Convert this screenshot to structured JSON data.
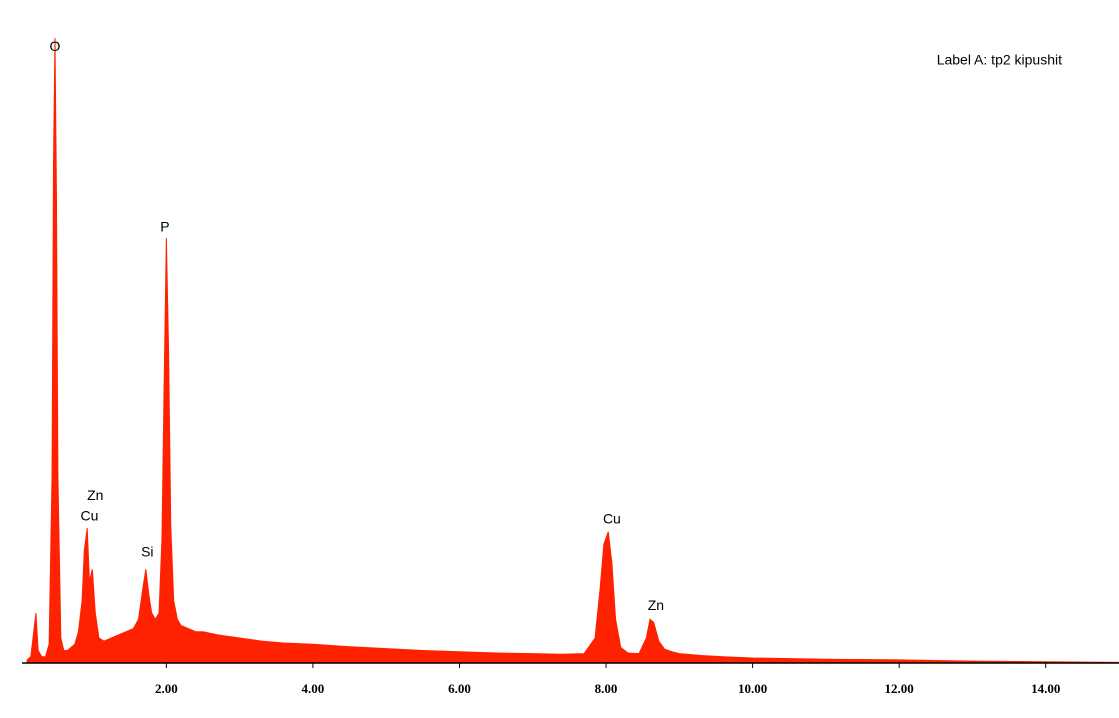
{
  "chart_data": {
    "type": "area",
    "label": "Label A: tp2 kipushit",
    "x": [
      0.1,
      0.15,
      0.2,
      0.22,
      0.25,
      0.3,
      0.35,
      0.4,
      0.44,
      0.46,
      0.48,
      0.5,
      0.52,
      0.56,
      0.6,
      0.65,
      0.7,
      0.75,
      0.8,
      0.85,
      0.88,
      0.92,
      0.95,
      0.99,
      1.03,
      1.08,
      1.15,
      1.25,
      1.35,
      1.45,
      1.55,
      1.62,
      1.68,
      1.72,
      1.76,
      1.8,
      1.85,
      1.9,
      1.94,
      1.97,
      2.0,
      2.03,
      2.06,
      2.1,
      2.15,
      2.2,
      2.3,
      2.4,
      2.5,
      2.7,
      3.0,
      3.3,
      3.6,
      4.0,
      4.5,
      5.0,
      5.5,
      6.0,
      6.5,
      7.0,
      7.4,
      7.7,
      7.85,
      7.92,
      7.97,
      8.03,
      8.08,
      8.13,
      8.2,
      8.3,
      8.45,
      8.55,
      8.6,
      8.65,
      8.72,
      8.8,
      8.9,
      9.0,
      9.3,
      9.6,
      10,
      11,
      12,
      13,
      14,
      15
    ],
    "values": [
      0.5,
      1,
      6,
      8,
      2,
      1,
      1,
      3,
      30,
      80,
      100,
      75,
      30,
      4,
      2,
      2,
      2.5,
      3,
      5,
      10,
      18,
      21.6,
      13,
      15,
      8,
      4,
      3.5,
      4,
      4.5,
      5,
      5.5,
      7,
      12,
      15,
      11,
      8,
      7,
      8,
      20,
      45,
      68,
      50,
      22,
      10,
      7,
      6,
      5.5,
      5,
      5,
      4.5,
      4,
      3.5,
      3.2,
      3,
      2.6,
      2.3,
      2,
      1.8,
      1.6,
      1.5,
      1.4,
      1.5,
      4,
      12,
      19,
      21,
      16,
      7,
      2.5,
      1.6,
      1.5,
      4,
      7,
      6.5,
      3.5,
      2.2,
      1.8,
      1.5,
      1.2,
      1,
      0.8,
      0.6,
      0.5,
      0.3,
      0.2,
      0.1
    ],
    "color": "#ff2200",
    "xlim": [
      0.03,
      15.0
    ],
    "ylim": [
      0,
      100
    ],
    "xticks": [
      {
        "value": 2,
        "label": "2.00"
      },
      {
        "value": 4,
        "label": "4.00"
      },
      {
        "value": 6,
        "label": "6.00"
      },
      {
        "value": 8,
        "label": "8.00"
      },
      {
        "value": 10,
        "label": "10.00"
      },
      {
        "value": 12,
        "label": "12.00"
      },
      {
        "value": 14,
        "label": "14.00"
      }
    ],
    "annotations": [
      {
        "text": "O",
        "x": 0.48,
        "y": 98.5
      },
      {
        "text": "Zn",
        "x": 1.03,
        "y": 26.7
      },
      {
        "text": "Cu",
        "x": 0.95,
        "y": 23.4
      },
      {
        "text": "Si",
        "x": 1.74,
        "y": 17.6
      },
      {
        "text": "P",
        "x": 1.98,
        "y": 69.6
      },
      {
        "text": "Cu",
        "x": 8.08,
        "y": 22.9
      },
      {
        "text": "Zn",
        "x": 8.68,
        "y": 9.1
      }
    ]
  }
}
